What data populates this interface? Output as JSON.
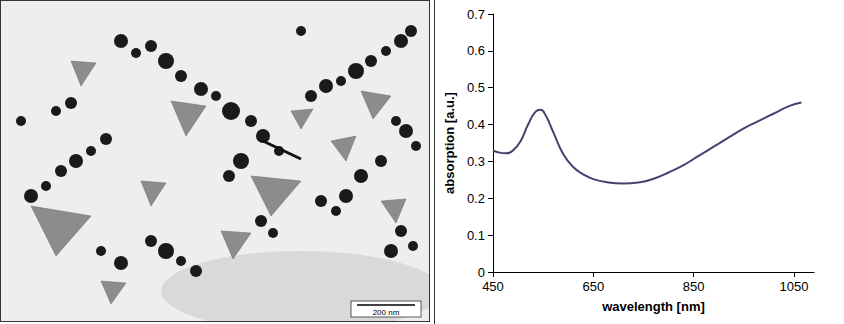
{
  "micrograph": {
    "scale_bar": "200 nm"
  },
  "chart_data": {
    "type": "line",
    "x_label": "wavelength [nm]",
    "y_label": "absorption [a.u.]",
    "x": [
      450,
      460,
      475,
      490,
      505,
      520,
      535,
      545,
      555,
      570,
      590,
      610,
      630,
      650,
      680,
      710,
      740,
      770,
      800,
      830,
      860,
      890,
      920,
      950,
      980,
      1010,
      1040,
      1065
    ],
    "values": [
      0.33,
      0.325,
      0.322,
      0.33,
      0.355,
      0.4,
      0.435,
      0.44,
      0.425,
      0.38,
      0.32,
      0.285,
      0.265,
      0.252,
      0.243,
      0.24,
      0.243,
      0.253,
      0.27,
      0.29,
      0.315,
      0.34,
      0.365,
      0.39,
      0.41,
      0.43,
      0.45,
      0.46
    ],
    "color": "#4b3f72",
    "xlim": [
      450,
      1090
    ],
    "xticks": [
      450,
      650,
      850,
      1050
    ],
    "ylim": [
      0,
      0.7
    ],
    "yticks": [
      0,
      0.1,
      0.2,
      0.3,
      0.4,
      0.5,
      0.6,
      0.7
    ],
    "grid": false
  }
}
